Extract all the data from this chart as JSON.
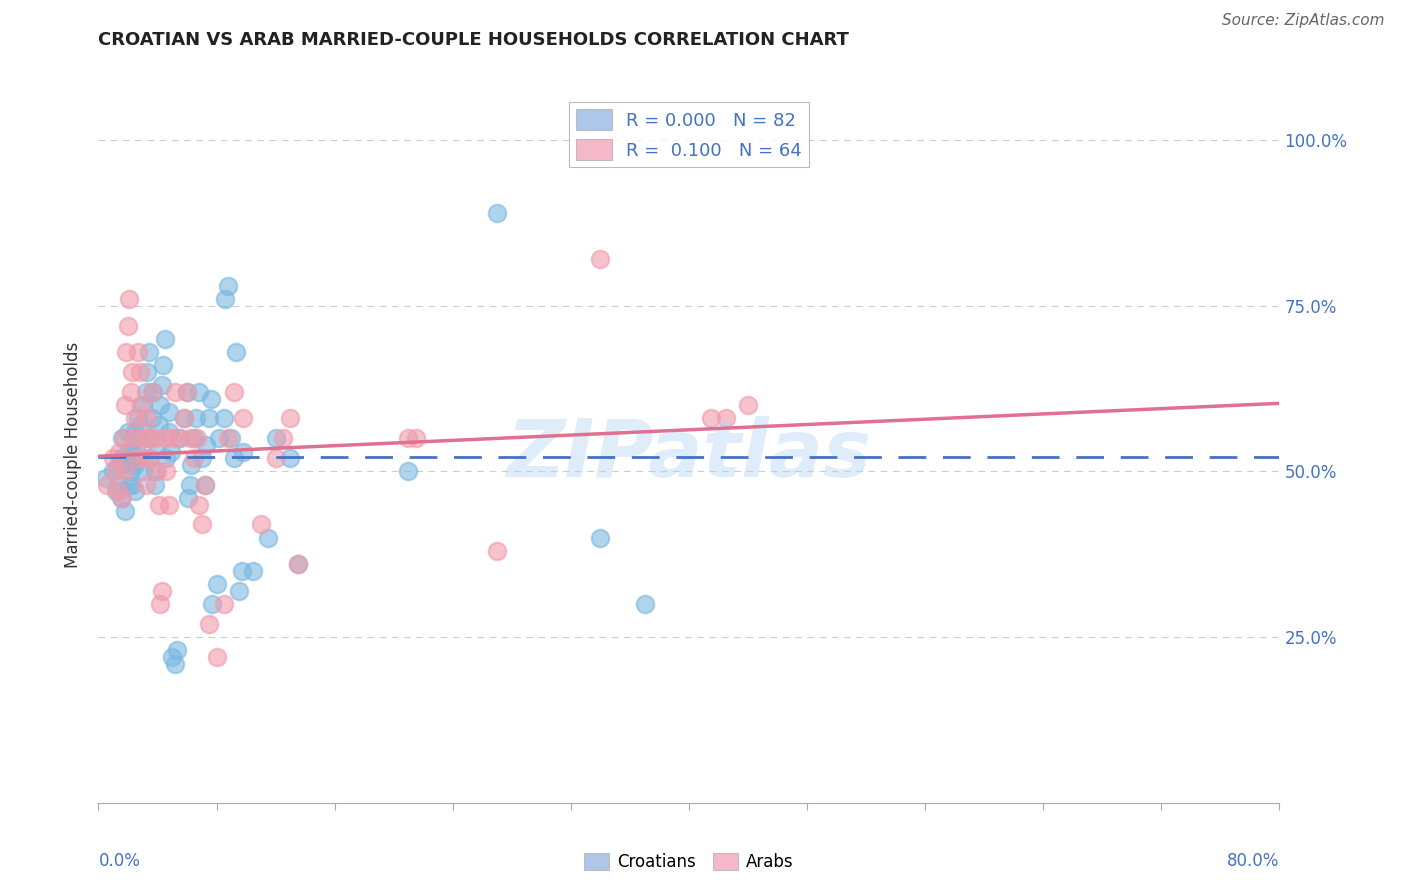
{
  "title": "CROATIAN VS ARAB MARRIED-COUPLE HOUSEHOLDS CORRELATION CHART",
  "source": "Source: ZipAtlas.com",
  "ylabel": "Married-couple Households",
  "ytick_labels": [
    "25.0%",
    "50.0%",
    "75.0%",
    "100.0%"
  ],
  "ytick_values": [
    0.25,
    0.5,
    0.75,
    1.0
  ],
  "xlim": [
    0.0,
    0.8
  ],
  "ylim": [
    0.0,
    1.05
  ],
  "croatian_color": "#7ab8e0",
  "arab_color": "#f09aaa",
  "croatian_line_color": "#4472c4",
  "arab_line_color": "#e07090",
  "legend_patch_blue": "#aec6e8",
  "legend_patch_pink": "#f4b8c8",
  "legend_text_color": "#4472c4",
  "background_color": "#ffffff",
  "grid_color": "#cccccc",
  "right_tick_color": "#4472c4",
  "watermark": "ZIPatlas",
  "croatian_scatter": [
    [
      0.005,
      0.49
    ],
    [
      0.01,
      0.5
    ],
    [
      0.012,
      0.47
    ],
    [
      0.013,
      0.51
    ],
    [
      0.014,
      0.48
    ],
    [
      0.015,
      0.52
    ],
    [
      0.015,
      0.46
    ],
    [
      0.016,
      0.55
    ],
    [
      0.018,
      0.44
    ],
    [
      0.018,
      0.52
    ],
    [
      0.02,
      0.53
    ],
    [
      0.02,
      0.56
    ],
    [
      0.021,
      0.48
    ],
    [
      0.022,
      0.5
    ],
    [
      0.022,
      0.51
    ],
    [
      0.023,
      0.48
    ],
    [
      0.023,
      0.53
    ],
    [
      0.025,
      0.51
    ],
    [
      0.025,
      0.47
    ],
    [
      0.025,
      0.56
    ],
    [
      0.026,
      0.54
    ],
    [
      0.027,
      0.58
    ],
    [
      0.027,
      0.55
    ],
    [
      0.028,
      0.52
    ],
    [
      0.029,
      0.57
    ],
    [
      0.03,
      0.6
    ],
    [
      0.03,
      0.5
    ],
    [
      0.032,
      0.62
    ],
    [
      0.033,
      0.65
    ],
    [
      0.034,
      0.68
    ],
    [
      0.034,
      0.52
    ],
    [
      0.035,
      0.55
    ],
    [
      0.036,
      0.58
    ],
    [
      0.037,
      0.62
    ],
    [
      0.038,
      0.48
    ],
    [
      0.038,
      0.5
    ],
    [
      0.04,
      0.54
    ],
    [
      0.041,
      0.57
    ],
    [
      0.042,
      0.6
    ],
    [
      0.043,
      0.63
    ],
    [
      0.044,
      0.66
    ],
    [
      0.045,
      0.7
    ],
    [
      0.046,
      0.52
    ],
    [
      0.048,
      0.56
    ],
    [
      0.048,
      0.59
    ],
    [
      0.049,
      0.53
    ],
    [
      0.05,
      0.22
    ],
    [
      0.052,
      0.21
    ],
    [
      0.053,
      0.23
    ],
    [
      0.055,
      0.55
    ],
    [
      0.058,
      0.58
    ],
    [
      0.06,
      0.62
    ],
    [
      0.061,
      0.46
    ],
    [
      0.062,
      0.48
    ],
    [
      0.063,
      0.51
    ],
    [
      0.065,
      0.55
    ],
    [
      0.066,
      0.58
    ],
    [
      0.068,
      0.62
    ],
    [
      0.07,
      0.52
    ],
    [
      0.072,
      0.48
    ],
    [
      0.073,
      0.54
    ],
    [
      0.075,
      0.58
    ],
    [
      0.076,
      0.61
    ],
    [
      0.077,
      0.3
    ],
    [
      0.08,
      0.33
    ],
    [
      0.082,
      0.55
    ],
    [
      0.085,
      0.58
    ],
    [
      0.086,
      0.76
    ],
    [
      0.088,
      0.78
    ],
    [
      0.09,
      0.55
    ],
    [
      0.092,
      0.52
    ],
    [
      0.093,
      0.68
    ],
    [
      0.095,
      0.32
    ],
    [
      0.097,
      0.35
    ],
    [
      0.098,
      0.53
    ],
    [
      0.105,
      0.35
    ],
    [
      0.115,
      0.4
    ],
    [
      0.12,
      0.55
    ],
    [
      0.13,
      0.52
    ],
    [
      0.135,
      0.36
    ],
    [
      0.21,
      0.5
    ],
    [
      0.27,
      0.89
    ],
    [
      0.34,
      0.4
    ],
    [
      0.37,
      0.3
    ]
  ],
  "arab_scatter": [
    [
      0.006,
      0.48
    ],
    [
      0.01,
      0.52
    ],
    [
      0.012,
      0.5
    ],
    [
      0.013,
      0.47
    ],
    [
      0.014,
      0.53
    ],
    [
      0.016,
      0.46
    ],
    [
      0.017,
      0.55
    ],
    [
      0.018,
      0.5
    ],
    [
      0.018,
      0.6
    ],
    [
      0.019,
      0.68
    ],
    [
      0.02,
      0.72
    ],
    [
      0.021,
      0.76
    ],
    [
      0.022,
      0.62
    ],
    [
      0.023,
      0.65
    ],
    [
      0.024,
      0.55
    ],
    [
      0.025,
      0.58
    ],
    [
      0.026,
      0.52
    ],
    [
      0.027,
      0.68
    ],
    [
      0.028,
      0.65
    ],
    [
      0.029,
      0.6
    ],
    [
      0.03,
      0.55
    ],
    [
      0.031,
      0.52
    ],
    [
      0.032,
      0.48
    ],
    [
      0.033,
      0.58
    ],
    [
      0.034,
      0.55
    ],
    [
      0.035,
      0.52
    ],
    [
      0.036,
      0.62
    ],
    [
      0.038,
      0.55
    ],
    [
      0.04,
      0.5
    ],
    [
      0.041,
      0.45
    ],
    [
      0.042,
      0.3
    ],
    [
      0.043,
      0.32
    ],
    [
      0.045,
      0.55
    ],
    [
      0.046,
      0.5
    ],
    [
      0.048,
      0.45
    ],
    [
      0.05,
      0.55
    ],
    [
      0.052,
      0.62
    ],
    [
      0.054,
      0.55
    ],
    [
      0.058,
      0.58
    ],
    [
      0.06,
      0.62
    ],
    [
      0.062,
      0.55
    ],
    [
      0.065,
      0.52
    ],
    [
      0.067,
      0.55
    ],
    [
      0.068,
      0.45
    ],
    [
      0.07,
      0.42
    ],
    [
      0.072,
      0.48
    ],
    [
      0.075,
      0.27
    ],
    [
      0.08,
      0.22
    ],
    [
      0.085,
      0.3
    ],
    [
      0.088,
      0.55
    ],
    [
      0.092,
      0.62
    ],
    [
      0.098,
      0.58
    ],
    [
      0.11,
      0.42
    ],
    [
      0.12,
      0.52
    ],
    [
      0.125,
      0.55
    ],
    [
      0.13,
      0.58
    ],
    [
      0.135,
      0.36
    ],
    [
      0.21,
      0.55
    ],
    [
      0.215,
      0.55
    ],
    [
      0.27,
      0.38
    ],
    [
      0.34,
      0.82
    ],
    [
      0.415,
      0.58
    ],
    [
      0.425,
      0.58
    ],
    [
      0.44,
      0.6
    ]
  ]
}
